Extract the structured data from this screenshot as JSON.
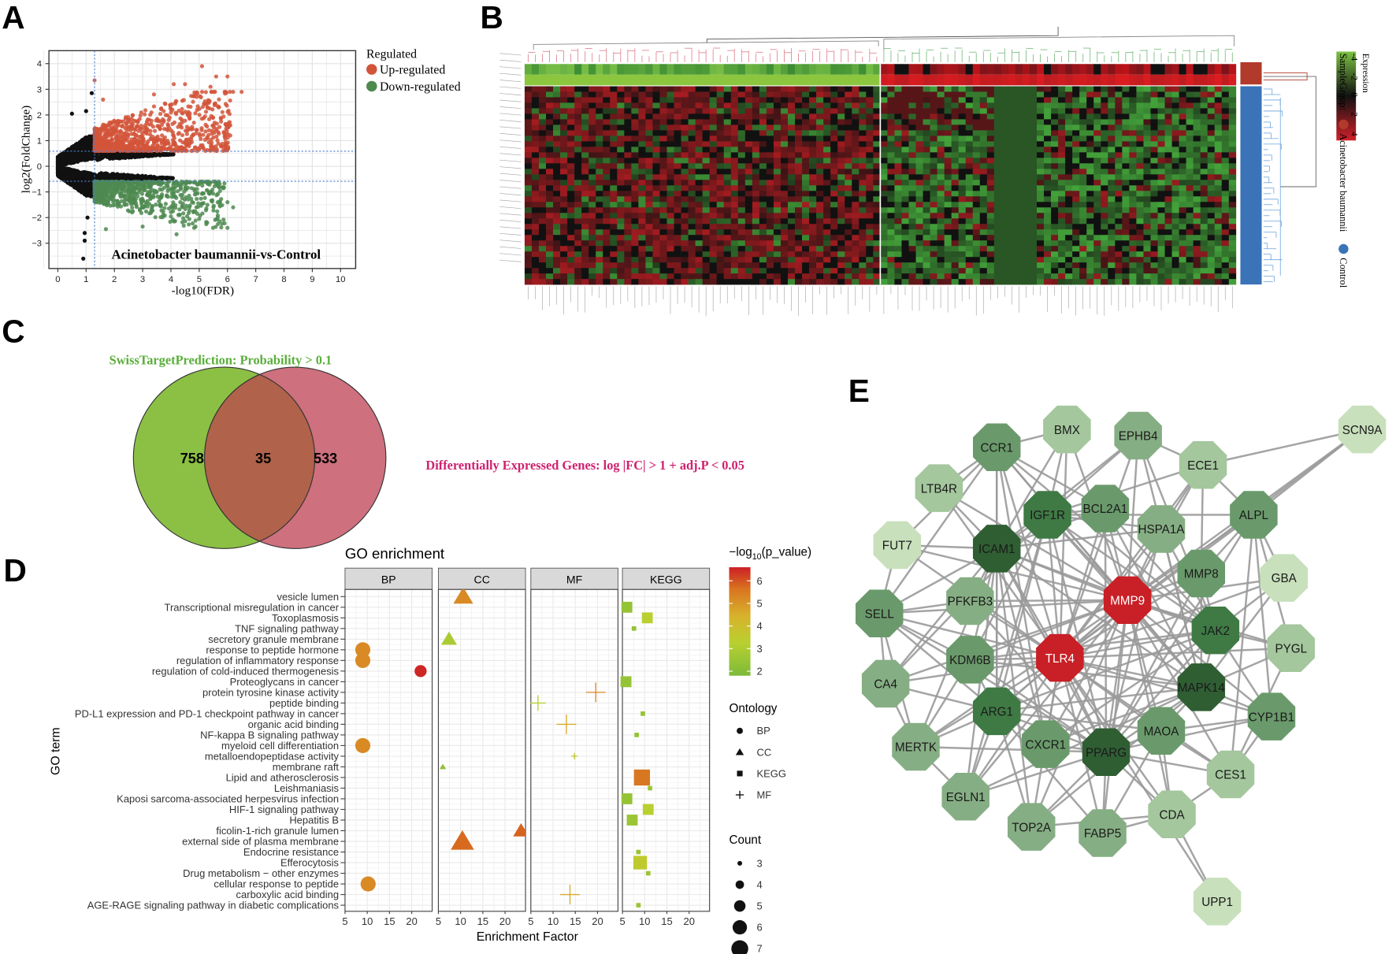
{
  "panels": {
    "a": "A",
    "b": "B",
    "c": "C",
    "d": "D",
    "e": "E"
  },
  "chart_data": [
    {
      "id": "volcano",
      "type": "scatter",
      "title": "Acinetobacter baumannii-vs-Control",
      "xlabel": "-log10(FDR)",
      "ylabel": "log2(FoldChange)",
      "xlim": [
        -0.3,
        10.6
      ],
      "ylim": [
        -3.8,
        4.6
      ],
      "xticks": [
        "0",
        "1",
        "2",
        "3",
        "4",
        "5",
        "6",
        "7",
        "8",
        "9",
        "10"
      ],
      "yticks": [
        "-3",
        "-2",
        "-1",
        "0",
        "1",
        "2",
        "3",
        "4"
      ],
      "grid": true,
      "thresholds": {
        "x": 1.3,
        "y": [
          0.585,
          -0.585
        ]
      },
      "legend": {
        "title": "Regulated",
        "placement": "right",
        "entries": [
          {
            "label": "Up-regulated",
            "color": "#d2553a"
          },
          {
            "label": "Down-regulated",
            "color": "#4e8a50"
          }
        ]
      },
      "not_significant_color": "#111111",
      "outliers": [
        {
          "x": 1.3,
          "y": 3.35,
          "g": "up"
        },
        {
          "x": 5.1,
          "y": 3.9,
          "g": "up"
        },
        {
          "x": 5.6,
          "y": 3.5,
          "g": "up"
        },
        {
          "x": 6.0,
          "y": 3.5,
          "g": "up"
        },
        {
          "x": 4.1,
          "y": 3.2,
          "g": "up"
        },
        {
          "x": 4.5,
          "y": 3.2,
          "g": "up"
        },
        {
          "x": 6.5,
          "y": 2.9,
          "g": "up"
        },
        {
          "x": 6.2,
          "y": 2.9,
          "g": "up"
        },
        {
          "x": 5.4,
          "y": 3.1,
          "g": "up"
        },
        {
          "x": 3.4,
          "y": 2.8,
          "g": "up"
        },
        {
          "x": 1.6,
          "y": 2.6,
          "g": "up"
        },
        {
          "x": 6.1,
          "y": 1.6,
          "g": "up"
        },
        {
          "x": 6.1,
          "y": 1.2,
          "g": "up"
        },
        {
          "x": 5.9,
          "y": 1.15,
          "g": "up"
        },
        {
          "x": 1.2,
          "y": 2.85,
          "g": "ns"
        },
        {
          "x": 0.5,
          "y": 2.05,
          "g": "ns"
        },
        {
          "x": 1.0,
          "y": 2.15,
          "g": "ns"
        },
        {
          "x": 0.9,
          "y": -3.6,
          "g": "ns"
        },
        {
          "x": 0.95,
          "y": -2.9,
          "g": "ns"
        },
        {
          "x": 0.95,
          "y": -2.6,
          "g": "ns"
        },
        {
          "x": 1.05,
          "y": -2.0,
          "g": "ns"
        },
        {
          "x": 6.0,
          "y": -2.4,
          "g": "down"
        },
        {
          "x": 4.2,
          "y": -2.65,
          "g": "down"
        },
        {
          "x": 6.2,
          "y": -1.6,
          "g": "down"
        },
        {
          "x": 6.0,
          "y": -1.4,
          "g": "down"
        },
        {
          "x": 1.7,
          "y": -2.45,
          "g": "down"
        },
        {
          "x": 3.0,
          "y": -2.35,
          "g": "down"
        },
        {
          "x": 5.0,
          "y": -2.05,
          "g": "down"
        }
      ]
    },
    {
      "id": "heatmap",
      "type": "heatmap",
      "legend": {
        "title": "Expression",
        "ticks": [
          "-4",
          "-2",
          "0",
          "2",
          "4"
        ],
        "low_color": "#5fb94a",
        "mid_color": "#111111",
        "high_color": "#d0202a",
        "group_title": "SampleGroup:",
        "groups": [
          {
            "label": "Acinetobacter baumannii",
            "color": "#b23a2a"
          },
          {
            "label": "Control",
            "color": "#3a73b8"
          }
        ]
      },
      "top_annotation_groups": [
        {
          "label": "Control",
          "color": "#8cc63f"
        },
        {
          "label": "Acinetobacter baumannii",
          "color": "#c1272d"
        }
      ]
    },
    {
      "id": "venn",
      "type": "venn",
      "sets": [
        {
          "label": "SwissTargetPrediction: Probability > 0.1",
          "color": "#8cc045",
          "only": "758"
        },
        {
          "label": "Differentially Expressed Genes: log |FC| > 1 + adj.P < 0.05",
          "color": "#c9606f",
          "only": "533"
        }
      ],
      "intersection": "35"
    },
    {
      "id": "go_enrichment",
      "type": "scatter",
      "title": "GO enrichment",
      "xlabel": "Enrichment Factor",
      "ylabel": "GO term",
      "facets": [
        "BP",
        "CC",
        "MF",
        "KEGG"
      ],
      "xlim": [
        5,
        24.5
      ],
      "xticks": [
        "5",
        "10",
        "15",
        "20"
      ],
      "color_legend": {
        "title_prefix": "−log",
        "title_sub": "10",
        "title_suffix": "(p_value)",
        "ticks": [
          "6",
          "5",
          "4",
          "3",
          "2"
        ],
        "range": [
          1.8,
          6.6
        ]
      },
      "shape_legend": {
        "title": "Ontology",
        "entries": [
          "BP",
          "CC",
          "KEGG",
          "MF"
        ]
      },
      "size_legend": {
        "title": "Count",
        "entries": [
          "3",
          "4",
          "5",
          "6",
          "7"
        ]
      },
      "terms": [
        {
          "term": "vesicle lumen",
          "facet": "CC",
          "ef": 10.6,
          "p": 5.0,
          "count": 6
        },
        {
          "term": "Transcriptional misregulation in cancer",
          "facet": "KEGG",
          "ef": 6.0,
          "p": 2.3,
          "count": 5
        },
        {
          "term": "Toxoplasmosis",
          "facet": "KEGG",
          "ef": 10.6,
          "p": 3.0,
          "count": 5
        },
        {
          "term": "TNF signaling pathway",
          "facet": "KEGG",
          "ef": 7.6,
          "p": 2.3,
          "count": 3
        },
        {
          "term": "secretory granule membrane",
          "facet": "CC",
          "ef": 7.4,
          "p": 2.7,
          "count": 5
        },
        {
          "term": "response to peptide hormone",
          "facet": "BP",
          "ef": 9.0,
          "p": 5.0,
          "count": 6
        },
        {
          "term": "regulation of inflammatory response",
          "facet": "BP",
          "ef": 9.0,
          "p": 5.0,
          "count": 6
        },
        {
          "term": "regulation of cold-induced thermogenesis",
          "facet": "BP",
          "ef": 22.0,
          "p": 6.5,
          "count": 5
        },
        {
          "term": "Proteoglycans in cancer",
          "facet": "KEGG",
          "ef": 5.8,
          "p": 2.3,
          "count": 5
        },
        {
          "term": "protein tyrosine kinase activity",
          "facet": "MF",
          "ef": 19.6,
          "p": 5.0,
          "count": 6
        },
        {
          "term": "peptide binding",
          "facet": "MF",
          "ef": 6.6,
          "p": 3.0,
          "count": 5
        },
        {
          "term": "PD-L1 expression and PD-1 checkpoint pathway in cancer",
          "facet": "KEGG",
          "ef": 9.6,
          "p": 2.3,
          "count": 3
        },
        {
          "term": "organic acid binding",
          "facet": "MF",
          "ef": 13.0,
          "p": 4.2,
          "count": 6
        },
        {
          "term": "NF-kappa B signaling pathway",
          "facet": "KEGG",
          "ef": 8.2,
          "p": 2.3,
          "count": 3
        },
        {
          "term": "myeloid cell differentiation",
          "facet": "BP",
          "ef": 9.0,
          "p": 5.0,
          "count": 6
        },
        {
          "term": "metalloendopeptidase activity",
          "facet": "MF",
          "ef": 14.8,
          "p": 3.3,
          "count": 3
        },
        {
          "term": "membrane raft",
          "facet": "CC",
          "ef": 6.0,
          "p": 2.2,
          "count": 3
        },
        {
          "term": "Lipid and atherosclerosis",
          "facet": "KEGG",
          "ef": 9.4,
          "p": 5.3,
          "count": 7
        },
        {
          "term": "Leishmaniasis",
          "facet": "KEGG",
          "ef": 11.2,
          "p": 2.4,
          "count": 3
        },
        {
          "term": "Kaposi sarcoma-associated herpesvirus infection",
          "facet": "KEGG",
          "ef": 6.0,
          "p": 2.3,
          "count": 5
        },
        {
          "term": "HIF-1 signaling pathway",
          "facet": "KEGG",
          "ef": 10.8,
          "p": 3.0,
          "count": 5
        },
        {
          "term": "Hepatitis B",
          "facet": "KEGG",
          "ef": 7.2,
          "p": 2.4,
          "count": 5
        },
        {
          "term": "ficolin-1-rich granule lumen",
          "facet": "CC",
          "ef": 23.6,
          "p": 5.6,
          "count": 5
        },
        {
          "term": "external side of plasma membrane",
          "facet": "CC",
          "ef": 10.4,
          "p": 5.5,
          "count": 7
        },
        {
          "term": "Endocrine resistance",
          "facet": "KEGG",
          "ef": 8.6,
          "p": 2.4,
          "count": 3
        },
        {
          "term": "Efferocytosis",
          "facet": "KEGG",
          "ef": 9.0,
          "p": 3.2,
          "count": 6
        },
        {
          "term": "Drug metabolism − other enzymes",
          "facet": "KEGG",
          "ef": 10.8,
          "p": 2.4,
          "count": 3
        },
        {
          "term": "cellular response to peptide",
          "facet": "BP",
          "ef": 10.2,
          "p": 5.0,
          "count": 6
        },
        {
          "term": "carboxylic acid binding",
          "facet": "MF",
          "ef": 13.8,
          "p": 4.2,
          "count": 6
        },
        {
          "term": "AGE-RAGE signaling pathway in diabetic complications",
          "facet": "KEGG",
          "ef": 8.6,
          "p": 2.4,
          "count": 3
        }
      ]
    }
  ],
  "network": {
    "colors": {
      "hub": "#c91f26",
      "1": "#2f5e33",
      "2": "#3f7a45",
      "3": "#6a9a6b",
      "4": "#86ae84",
      "5": "#a4c79d",
      "6": "#c8e0bc"
    },
    "nodes": [
      {
        "id": "CCR1",
        "shade": "3"
      },
      {
        "id": "BMX",
        "shade": "5"
      },
      {
        "id": "EPHB4",
        "shade": "4"
      },
      {
        "id": "SCN9A",
        "shade": "6"
      },
      {
        "id": "ECE1",
        "shade": "5"
      },
      {
        "id": "LTB4R",
        "shade": "5"
      },
      {
        "id": "IGF1R",
        "shade": "2"
      },
      {
        "id": "BCL2A1",
        "shade": "3"
      },
      {
        "id": "HSPA1A",
        "shade": "4"
      },
      {
        "id": "ALPL",
        "shade": "3"
      },
      {
        "id": "FUT7",
        "shade": "6"
      },
      {
        "id": "ICAM1",
        "shade": "1"
      },
      {
        "id": "GBA",
        "shade": "6"
      },
      {
        "id": "MMP8",
        "shade": "3"
      },
      {
        "id": "MMP9",
        "shade": "hub"
      },
      {
        "id": "PFKFB3",
        "shade": "4"
      },
      {
        "id": "SELL",
        "shade": "3"
      },
      {
        "id": "JAK2",
        "shade": "2"
      },
      {
        "id": "PYGL",
        "shade": "5"
      },
      {
        "id": "KDM6B",
        "shade": "3"
      },
      {
        "id": "TLR4",
        "shade": "hub"
      },
      {
        "id": "CA4",
        "shade": "4"
      },
      {
        "id": "MAPK14",
        "shade": "1"
      },
      {
        "id": "ARG1",
        "shade": "2"
      },
      {
        "id": "CYP1B1",
        "shade": "3"
      },
      {
        "id": "MERTK",
        "shade": "4"
      },
      {
        "id": "CXCR1",
        "shade": "3"
      },
      {
        "id": "PPARG",
        "shade": "1"
      },
      {
        "id": "MAOA",
        "shade": "3"
      },
      {
        "id": "CES1",
        "shade": "5"
      },
      {
        "id": "EGLN1",
        "shade": "4"
      },
      {
        "id": "CDA",
        "shade": "5"
      },
      {
        "id": "TOP2A",
        "shade": "4"
      },
      {
        "id": "FABP5",
        "shade": "4"
      },
      {
        "id": "UPP1",
        "shade": "6"
      }
    ],
    "adjacency": {
      "TLR4": [
        "CCR1",
        "BMX",
        "EPHB4",
        "SCN9A",
        "ECE1",
        "LTB4R",
        "IGF1R",
        "BCL2A1",
        "HSPA1A",
        "ALPL",
        "FUT7",
        "ICAM1",
        "GBA",
        "MMP8",
        "MMP9",
        "PFKFB3",
        "SELL",
        "JAK2",
        "PYGL",
        "KDM6B",
        "CA4",
        "MAPK14",
        "ARG1",
        "CYP1B1",
        "MERTK",
        "CXCR1",
        "PPARG",
        "MAOA",
        "CES1",
        "EGLN1",
        "CDA",
        "TOP2A",
        "FABP5",
        "UPP1"
      ],
      "MMP9": [
        "CCR1",
        "BMX",
        "EPHB4",
        "SCN9A",
        "ECE1",
        "LTB4R",
        "IGF1R",
        "BCL2A1",
        "HSPA1A",
        "ALPL",
        "FUT7",
        "ICAM1",
        "GBA",
        "MMP8",
        "PFKFB3",
        "SELL",
        "JAK2",
        "PYGL",
        "KDM6B",
        "CA4",
        "MAPK14",
        "ARG1",
        "CYP1B1",
        "MERTK",
        "CXCR1",
        "PPARG",
        "MAOA",
        "CES1",
        "EGLN1",
        "CDA",
        "TOP2A",
        "FABP5"
      ],
      "ICAM1": [
        "CCR1",
        "BMX",
        "EPHB4",
        "LTB4R",
        "IGF1R",
        "BCL2A1",
        "HSPA1A",
        "FUT7",
        "SELL",
        "JAK2",
        "KDM6B",
        "CA4",
        "MAPK14",
        "ARG1",
        "MERTK",
        "CXCR1",
        "PPARG",
        "EGLN1",
        "TOP2A",
        "PFKFB3"
      ],
      "PPARG": [
        "IGF1R",
        "BCL2A1",
        "HSPA1A",
        "ALPL",
        "MMP8",
        "JAK2",
        "KDM6B",
        "MAPK14",
        "ARG1",
        "CYP1B1",
        "CXCR1",
        "MAOA",
        "CES1",
        "EGLN1",
        "CDA",
        "TOP2A",
        "FABP5",
        "PFKFB3",
        "SELL",
        "MERTK"
      ],
      "MAPK14": [
        "CCR1",
        "EPHB4",
        "IGF1R",
        "BCL2A1",
        "HSPA1A",
        "JAK2",
        "KDM6B",
        "ARG1",
        "CYP1B1",
        "CXCR1",
        "MAOA",
        "EGLN1",
        "TOP2A",
        "PYGL",
        "MMP8",
        "GBA"
      ],
      "JAK2": [
        "CCR1",
        "EPHB4",
        "IGF1R",
        "BCL2A1",
        "HSPA1A",
        "KDM6B",
        "ARG1",
        "CXCR1",
        "PYGL",
        "GBA",
        "MMP8",
        "CYP1B1"
      ],
      "IGF1R": [
        "BMX",
        "EPHB4",
        "ECE1",
        "BCL2A1",
        "HSPA1A",
        "ALPL",
        "ARG1",
        "KDM6B",
        "EGLN1",
        "CA4"
      ],
      "ARG1": [
        "CCR1",
        "SELL",
        "KDM6B",
        "CA4",
        "MERTK",
        "CXCR1",
        "EGLN1",
        "TOP2A",
        "FABP5",
        "MAOA"
      ],
      "CCR1": [
        "BMX",
        "LTB4R",
        "CXCR1",
        "SELL",
        "FUT7",
        "BCL2A1"
      ],
      "ALPL": [
        "ECE1",
        "SCN9A",
        "MMP8",
        "GBA",
        "PYGL",
        "CYP1B1",
        "CES1"
      ],
      "ECE1": [
        "SCN9A",
        "EPHB4",
        "HSPA1A",
        "MMP8"
      ],
      "CDA": [
        "UPP1",
        "MAOA",
        "CES1",
        "FABP5",
        "TOP2A"
      ],
      "CES1": [
        "CYP1B1",
        "MAOA",
        "PYGL"
      ],
      "SELL": [
        "FUT7",
        "CA4",
        "MERTK",
        "PFKFB3",
        "KDM6B"
      ],
      "MERTK": [
        "EGLN1",
        "CA4",
        "KDM6B"
      ],
      "MAOA": [
        "CYP1B1",
        "FABP5"
      ]
    }
  }
}
